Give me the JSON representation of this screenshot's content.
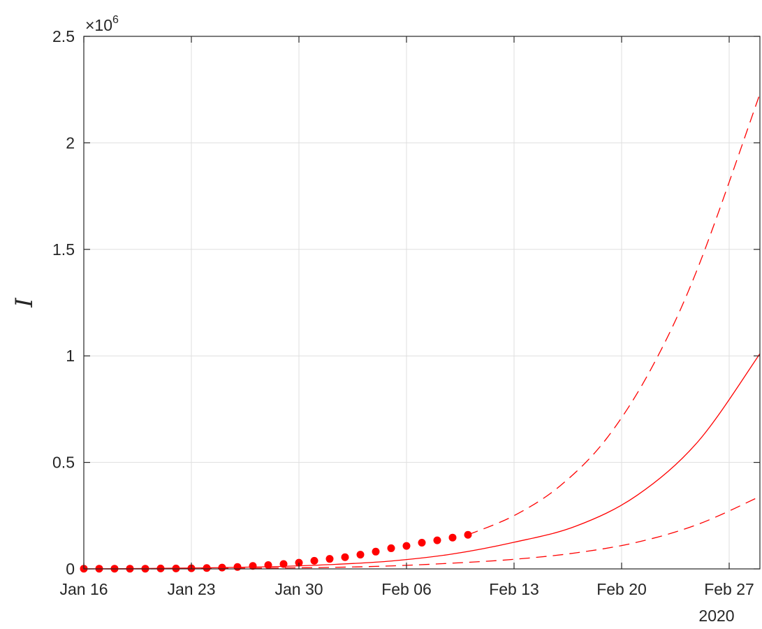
{
  "chart_data": {
    "type": "line",
    "title": "",
    "xlabel": "",
    "ylabel": "I",
    "x_year_label": "2020",
    "y_exponent_label": {
      "times": "×10",
      "power": "6"
    },
    "xlim": [
      "2020-01-16",
      "2020-02-29"
    ],
    "ylim": [
      0,
      2500000
    ],
    "grid": true,
    "legend": "none",
    "colors": {
      "series": "#ff0000",
      "grid": "#dfdfdf",
      "axis": "#262626"
    },
    "x_ticks": [
      {
        "date": "2020-01-16",
        "label": "Jan 16"
      },
      {
        "date": "2020-01-23",
        "label": "Jan 23"
      },
      {
        "date": "2020-01-30",
        "label": "Jan 30"
      },
      {
        "date": "2020-02-06",
        "label": "Feb 06"
      },
      {
        "date": "2020-02-13",
        "label": "Feb 13"
      },
      {
        "date": "2020-02-20",
        "label": "Feb 20"
      },
      {
        "date": "2020-02-27",
        "label": "Feb 27"
      }
    ],
    "y_ticks": [
      {
        "value": 0,
        "label": "0"
      },
      {
        "value": 500000,
        "label": "0.5"
      },
      {
        "value": 1000000,
        "label": "1"
      },
      {
        "value": 1500000,
        "label": "1.5"
      },
      {
        "value": 2000000,
        "label": "2"
      },
      {
        "value": 2500000,
        "label": "2.5"
      }
    ],
    "series": [
      {
        "style": "markers",
        "x": [
          "2020-01-16",
          "2020-01-17",
          "2020-01-18",
          "2020-01-19",
          "2020-01-20",
          "2020-01-21",
          "2020-01-22",
          "2020-01-23",
          "2020-01-24",
          "2020-01-25",
          "2020-01-26",
          "2020-01-27",
          "2020-01-28",
          "2020-01-29",
          "2020-01-30",
          "2020-01-31",
          "2020-02-01",
          "2020-02-02",
          "2020-02-03",
          "2020-02-04",
          "2020-02-05",
          "2020-02-06",
          "2020-02-07",
          "2020-02-08",
          "2020-02-09",
          "2020-02-10"
        ],
        "values": [
          1000,
          1000,
          1000,
          1000,
          1000,
          2000,
          2000,
          3000,
          4000,
          6000,
          9000,
          14000,
          18000,
          23000,
          29000,
          38000,
          47000,
          55000,
          67000,
          81000,
          97000,
          108000,
          123000,
          134000,
          147000,
          160000
        ]
      },
      {
        "style": "dashed",
        "x": [
          "2020-02-10",
          "2020-02-13",
          "2020-02-16",
          "2020-02-19",
          "2020-02-22",
          "2020-02-25",
          "2020-02-29"
        ],
        "values": [
          160000,
          250000,
          390000,
          610000,
          950000,
          1420000,
          2230000
        ]
      },
      {
        "style": "solid",
        "x": [
          "2020-01-16",
          "2020-01-20",
          "2020-01-24",
          "2020-01-28",
          "2020-02-01",
          "2020-02-05",
          "2020-02-09",
          "2020-02-13",
          "2020-02-17",
          "2020-02-21",
          "2020-02-25",
          "2020-02-29"
        ],
        "values": [
          0,
          2000,
          5000,
          10000,
          20000,
          37000,
          70000,
          125000,
          200000,
          345000,
          600000,
          1010000
        ]
      },
      {
        "style": "dashed",
        "x": [
          "2020-01-16",
          "2020-01-20",
          "2020-01-24",
          "2020-01-28",
          "2020-02-01",
          "2020-02-05",
          "2020-02-09",
          "2020-02-13",
          "2020-02-17",
          "2020-02-21",
          "2020-02-25",
          "2020-02-29"
        ],
        "values": [
          0,
          0,
          2000,
          4000,
          7000,
          14000,
          27000,
          45000,
          75000,
          125000,
          210000,
          340000
        ]
      }
    ]
  }
}
